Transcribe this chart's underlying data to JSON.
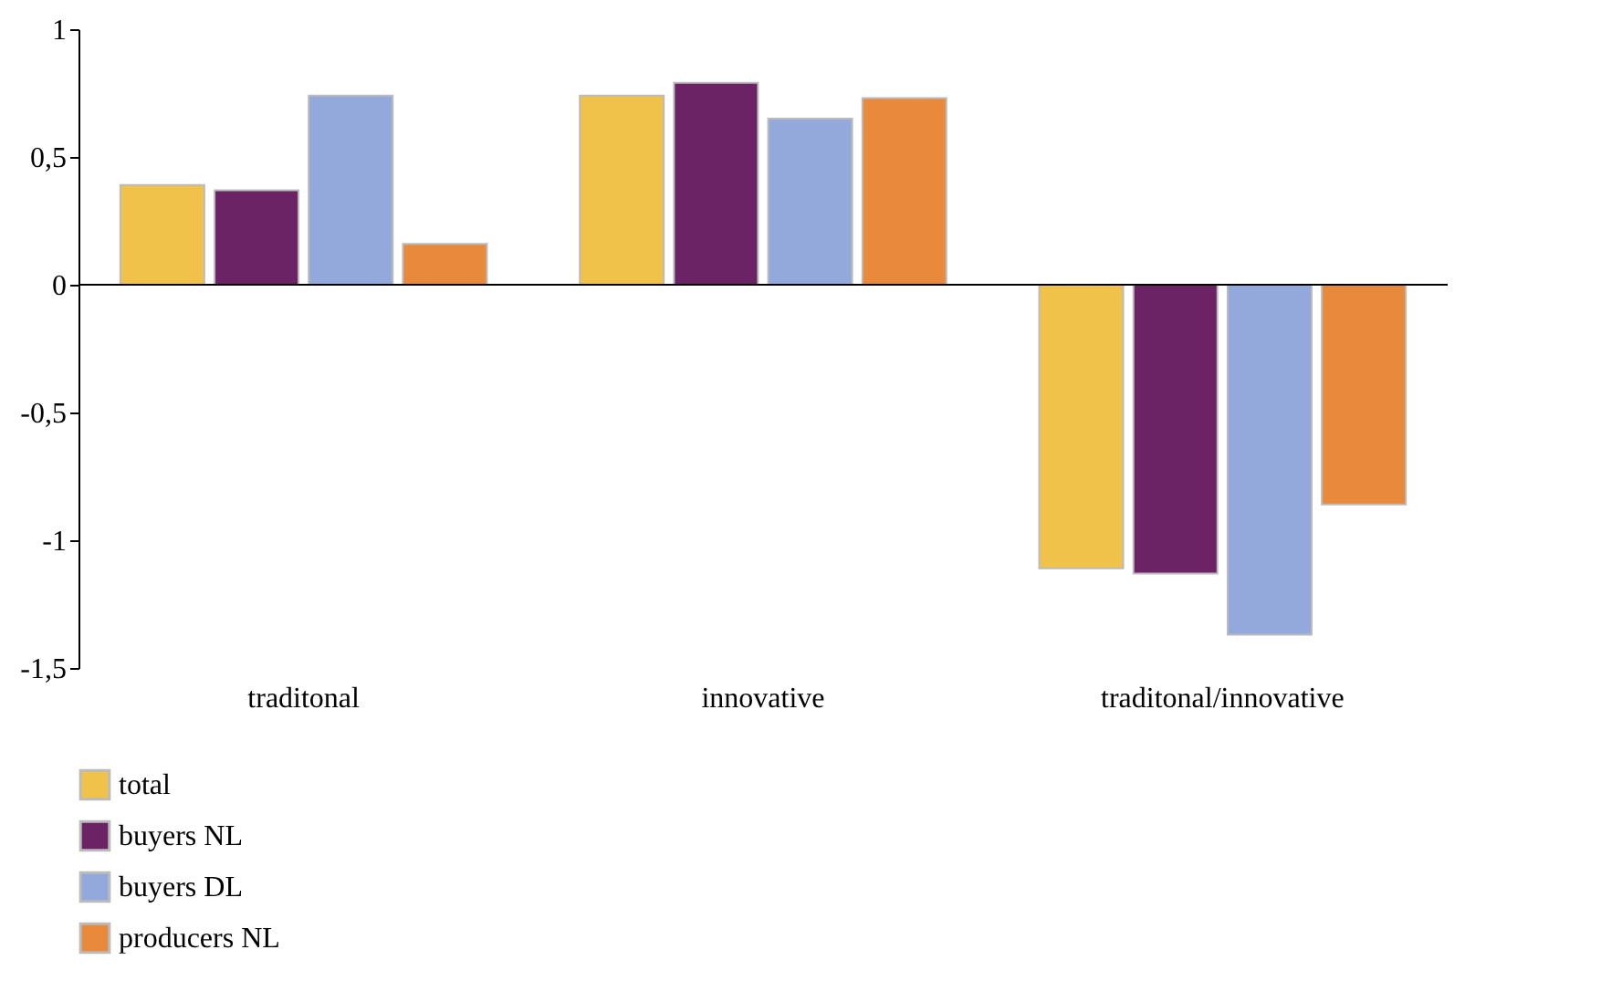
{
  "chart_data": {
    "type": "bar",
    "categories": [
      "traditonal",
      "innovative",
      "traditonal/innovative"
    ],
    "series": [
      {
        "name": "total",
        "color": "#f0c24a",
        "values": [
          0.39,
          0.74,
          -1.11
        ]
      },
      {
        "name": "buyers NL",
        "color": "#6b2366",
        "values": [
          0.37,
          0.79,
          -1.13
        ]
      },
      {
        "name": "buyers DL",
        "color": "#93a9dc",
        "values": [
          0.74,
          0.65,
          -1.37
        ]
      },
      {
        "name": "producers NL",
        "color": "#e8893c",
        "values": [
          0.16,
          0.73,
          -0.86
        ]
      }
    ],
    "ylim": [
      -1.5,
      1
    ],
    "yticks": [
      {
        "value": -1.5,
        "label": "-1,5"
      },
      -1,
      {
        "value": -0.5,
        "label": "-0,5"
      },
      0,
      {
        "value": 0.5,
        "label": "0,5"
      },
      1
    ],
    "ref_lines": [
      {
        "axis": "y",
        "value": 0,
        "color": "#000000"
      }
    ],
    "grid": false,
    "legend": "bottom left"
  }
}
